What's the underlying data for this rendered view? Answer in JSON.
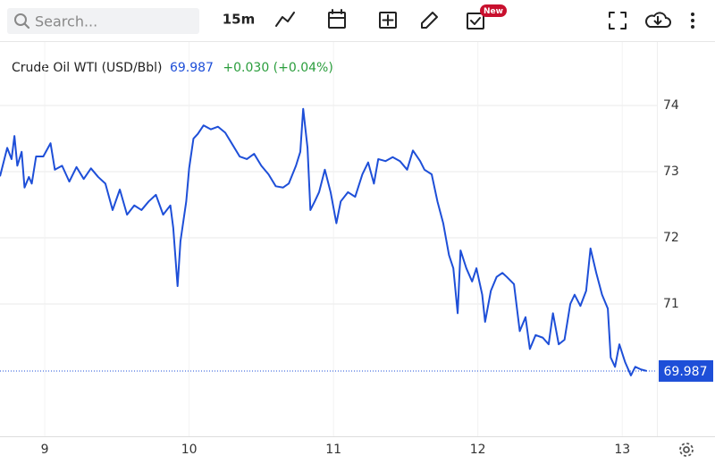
{
  "toolbar": {
    "search_placeholder": "Search...",
    "interval": "15m",
    "badge": "New"
  },
  "chart_data": {
    "type": "line",
    "title": "Crude Oil WTI (USD/Bbl)",
    "change": "+0.030 (+0.04%)",
    "color": "#1e4fd8",
    "change_color": "#2a9d3c",
    "x": [
      8.69,
      8.74,
      8.77,
      8.79,
      8.81,
      8.84,
      8.86,
      8.89,
      8.91,
      8.94,
      8.99,
      9.04,
      9.07,
      9.12,
      9.17,
      9.22,
      9.27,
      9.32,
      9.37,
      9.42,
      9.47,
      9.52,
      9.57,
      9.62,
      9.67,
      9.72,
      9.77,
      9.82,
      9.87,
      9.89,
      9.92,
      9.94,
      9.98,
      10.0,
      10.03,
      10.06,
      10.1,
      10.15,
      10.2,
      10.25,
      10.3,
      10.35,
      10.4,
      10.45,
      10.5,
      10.55,
      10.6,
      10.65,
      10.69,
      10.74,
      10.77,
      10.79,
      10.82,
      10.84,
      10.87,
      10.9,
      10.94,
      10.98,
      11.02,
      11.05,
      11.1,
      11.15,
      11.2,
      11.24,
      11.28,
      11.31,
      11.36,
      11.41,
      11.46,
      11.51,
      11.55,
      11.6,
      11.63,
      11.68,
      11.72,
      11.76,
      11.8,
      11.83,
      11.86,
      11.88,
      11.92,
      11.96,
      11.99,
      12.03,
      12.05,
      12.09,
      12.13,
      12.17,
      12.2,
      12.25,
      12.29,
      12.33,
      12.36,
      12.4,
      12.45,
      12.49,
      12.52,
      12.56,
      12.6,
      12.64,
      12.67,
      12.71,
      12.75,
      12.78,
      12.82,
      12.86,
      12.9,
      12.92,
      12.95,
      12.98,
      13.02,
      13.06,
      13.09,
      13.13,
      13.17
    ],
    "values": [
      72.93,
      73.36,
      73.19,
      73.54,
      73.09,
      73.3,
      72.76,
      72.92,
      72.82,
      73.23,
      73.23,
      73.43,
      73.03,
      73.09,
      72.85,
      73.07,
      72.89,
      73.05,
      72.92,
      72.82,
      72.42,
      72.73,
      72.35,
      72.49,
      72.42,
      72.55,
      72.65,
      72.35,
      72.49,
      72.15,
      71.27,
      71.95,
      72.55,
      73.05,
      73.5,
      73.57,
      73.7,
      73.64,
      73.68,
      73.59,
      73.41,
      73.23,
      73.19,
      73.27,
      73.09,
      72.96,
      72.78,
      72.76,
      72.82,
      73.09,
      73.3,
      73.95,
      73.36,
      72.42,
      72.55,
      72.69,
      73.03,
      72.69,
      72.22,
      72.55,
      72.69,
      72.62,
      72.96,
      73.14,
      72.82,
      73.19,
      73.16,
      73.22,
      73.16,
      73.03,
      73.32,
      73.16,
      73.03,
      72.96,
      72.55,
      72.22,
      71.74,
      71.54,
      70.86,
      71.81,
      71.54,
      71.34,
      71.54,
      71.14,
      70.73,
      71.2,
      71.41,
      71.47,
      71.41,
      71.3,
      70.59,
      70.8,
      70.32,
      70.53,
      70.49,
      70.39,
      70.86,
      70.39,
      70.46,
      71.0,
      71.14,
      70.97,
      71.2,
      71.84,
      71.47,
      71.14,
      70.93,
      70.19,
      70.05,
      70.39,
      70.12,
      69.92,
      70.05,
      70.01,
      69.987
    ],
    "xlim": [
      8.69,
      13.24
    ],
    "xticks": [
      9,
      10,
      11,
      12,
      13
    ],
    "ylim": [
      69.0,
      74.96
    ],
    "yticks": [
      71,
      72,
      73,
      74
    ],
    "grid": true
  }
}
